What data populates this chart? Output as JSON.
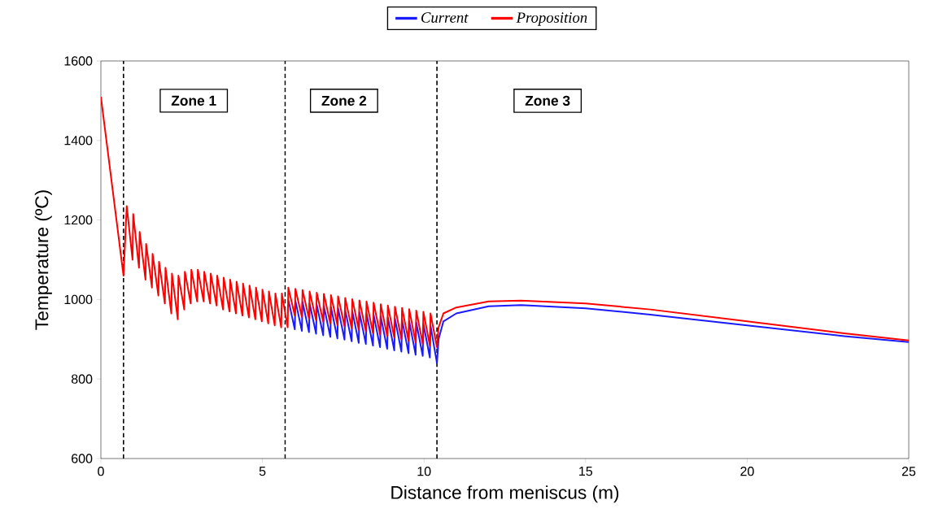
{
  "chart_data": {
    "type": "line",
    "xlabel": "Distance from meniscus (m)",
    "ylabel": "Temperature (ºC)",
    "xlim": [
      0,
      25
    ],
    "ylim": [
      600,
      1600
    ],
    "xticks": [
      0,
      5,
      10,
      15,
      20,
      25
    ],
    "yticks": [
      600,
      800,
      1000,
      1200,
      1400,
      1600
    ],
    "grid": false,
    "legend": "top",
    "line_style": "solid",
    "marker": "none",
    "x": [
      0,
      0.7,
      0.8,
      0.98,
      1.0,
      1.18,
      1.2,
      1.38,
      1.4,
      1.58,
      1.6,
      1.78,
      1.8,
      1.98,
      2.0,
      2.18,
      2.2,
      2.38,
      2.4,
      2.58,
      2.6,
      2.78,
      2.8,
      2.98,
      3.0,
      3.18,
      3.2,
      3.38,
      3.4,
      3.58,
      3.6,
      3.78,
      3.8,
      3.98,
      4.0,
      4.18,
      4.2,
      4.38,
      4.4,
      4.58,
      4.6,
      4.78,
      4.8,
      4.98,
      5.0,
      5.18,
      5.2,
      5.38,
      5.4,
      5.58,
      5.6,
      5.78,
      5.8,
      6.0,
      6.02,
      6.22,
      6.24,
      6.44,
      6.46,
      6.66,
      6.68,
      6.88,
      6.9,
      7.1,
      7.12,
      7.32,
      7.34,
      7.54,
      7.56,
      7.76,
      7.78,
      7.98,
      8.0,
      8.2,
      8.22,
      8.42,
      8.44,
      8.64,
      8.66,
      8.86,
      8.88,
      9.08,
      9.1,
      9.3,
      9.32,
      9.52,
      9.54,
      9.74,
      9.76,
      9.96,
      9.98,
      10.18,
      10.2,
      10.4,
      10.45,
      10.6,
      11,
      12,
      13,
      15,
      17,
      20,
      23,
      25
    ],
    "series": [
      {
        "name": "Current",
        "color": "#1a1aff",
        "values": [
          null,
          null,
          null,
          null,
          null,
          null,
          null,
          null,
          null,
          null,
          null,
          null,
          null,
          null,
          null,
          null,
          null,
          null,
          null,
          null,
          null,
          null,
          null,
          null,
          null,
          null,
          null,
          null,
          null,
          null,
          null,
          null,
          null,
          null,
          null,
          null,
          null,
          null,
          null,
          null,
          null,
          null,
          null,
          null,
          null,
          null,
          null,
          null,
          null,
          null,
          null,
          null,
          1000,
          925,
          997,
          921,
          994,
          918,
          990,
          914,
          987,
          910,
          984,
          906,
          981,
          902,
          978,
          899,
          974,
          895,
          971,
          891,
          968,
          888,
          965,
          884,
          962,
          880,
          958,
          876,
          955,
          872,
          952,
          869,
          949,
          865,
          946,
          861,
          942,
          858,
          939,
          854,
          935,
          840,
          900,
          945,
          965,
          983,
          986,
          978,
          962,
          935,
          908,
          893
        ]
      },
      {
        "name": "Proposition",
        "color": "#ff0000",
        "values": [
          1510,
          1060,
          1235,
          1100,
          1215,
          1080,
          1170,
          1050,
          1140,
          1030,
          1115,
          1010,
          1095,
          990,
          1080,
          965,
          1065,
          950,
          1060,
          975,
          1070,
          990,
          1075,
          995,
          1075,
          995,
          1070,
          990,
          1065,
          985,
          1060,
          975,
          1055,
          970,
          1050,
          965,
          1045,
          960,
          1040,
          955,
          1035,
          950,
          1030,
          945,
          1025,
          940,
          1020,
          935,
          1015,
          930,
          1015,
          930,
          1030,
          960,
          1027,
          956,
          1024,
          952,
          1020,
          948,
          1017,
          944,
          1014,
          940,
          1011,
          936,
          1008,
          932,
          1004,
          928,
          1001,
          924,
          998,
          920,
          995,
          916,
          992,
          912,
          988,
          908,
          985,
          904,
          982,
          900,
          979,
          896,
          976,
          892,
          972,
          888,
          969,
          884,
          965,
          880,
          930,
          965,
          980,
          995,
          997,
          990,
          975,
          945,
          915,
          897
        ]
      }
    ],
    "ref_lines": [
      {
        "axis": "x",
        "value": 0.7,
        "color": "#000000",
        "line_style": "dashed"
      },
      {
        "axis": "x",
        "value": 5.7,
        "color": "#000000",
        "line_style": "dashed"
      },
      {
        "axis": "x",
        "value": 10.4,
        "color": "#000000",
        "line_style": "dashed"
      }
    ],
    "annotations": [
      "Zone 1",
      "Zone 2",
      "Zone 3"
    ]
  }
}
